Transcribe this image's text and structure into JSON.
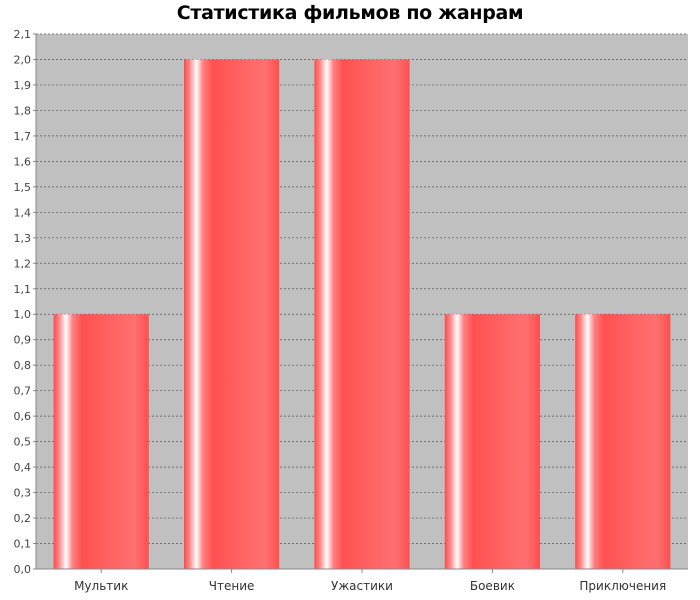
{
  "chart_data": {
    "type": "bar",
    "title": "Статистика фильмов по жанрам",
    "xlabel": "",
    "ylabel": "",
    "categories": [
      "Мультик",
      "Чтение",
      "Ужастики",
      "Боевик",
      "Приключения"
    ],
    "values": [
      1.0,
      2.0,
      2.0,
      1.0,
      1.0
    ],
    "ylim": [
      0,
      2.1
    ],
    "ytick_labels": [
      "0,0",
      "0,1",
      "0,2",
      "0,3",
      "0,4",
      "0,5",
      "0,6",
      "0,7",
      "0,8",
      "0,9",
      "1,0",
      "1,1",
      "1,2",
      "1,3",
      "1,4",
      "1,5",
      "1,6",
      "1,7",
      "1,8",
      "1,9",
      "2,0",
      "2,1"
    ],
    "grid": true,
    "legend": "none",
    "colors": {
      "plot_background": "#c0c0c0",
      "bar": "#ff5a5a",
      "bar_highlight": "#ffffff",
      "gridline": "#555555",
      "axis": "#888888"
    }
  }
}
